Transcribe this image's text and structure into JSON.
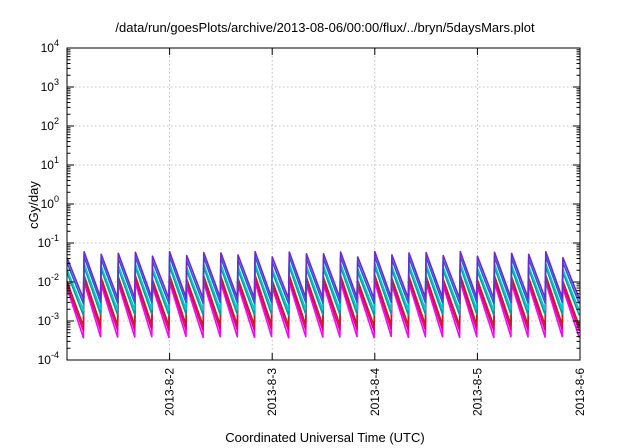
{
  "chart_data": {
    "type": "line",
    "title": "/data/run/goesPlots/archive/2013-08-06/00:00/flux/../bryn/5daysMars.plot",
    "xlabel": "Coordinated Universal Time (UTC)",
    "ylabel": "cGy/day",
    "yscale": "log",
    "ylim": [
      0.0001,
      10000
    ],
    "y_ticks": [
      {
        "base": "10",
        "exp": "-4"
      },
      {
        "base": "10",
        "exp": "-3"
      },
      {
        "base": "10",
        "exp": "-2"
      },
      {
        "base": "10",
        "exp": "-1"
      },
      {
        "base": "10",
        "exp": "0"
      },
      {
        "base": "10",
        "exp": "1"
      },
      {
        "base": "10",
        "exp": "2"
      },
      {
        "base": "10",
        "exp": "3"
      },
      {
        "base": "10",
        "exp": "4"
      }
    ],
    "xlim": [
      "2013-08-01T00:00",
      "2013-08-06T00:00"
    ],
    "x_ticks": [
      "2013-8-2",
      "2013-8-3",
      "2013-8-4",
      "2013-8-5",
      "2013-8-6"
    ],
    "grid": true,
    "legend": "none",
    "sawtooth_period_hours": 4,
    "series": [
      {
        "color": "#ff00ff",
        "peak": 0.01,
        "trough": 0.0004
      },
      {
        "color": "#e6007e",
        "peak": 0.012,
        "trough": 0.0006
      },
      {
        "color": "#c02020",
        "peak": 0.015,
        "trough": 0.0008
      },
      {
        "color": "#00a0a0",
        "peak": 0.025,
        "trough": 0.0015
      },
      {
        "color": "#00c8d0",
        "peak": 0.03,
        "trough": 0.002
      },
      {
        "color": "#2a5ad8",
        "peak": 0.045,
        "trough": 0.003
      },
      {
        "color": "#6a2ad0",
        "peak": 0.06,
        "trough": 0.004
      }
    ]
  }
}
